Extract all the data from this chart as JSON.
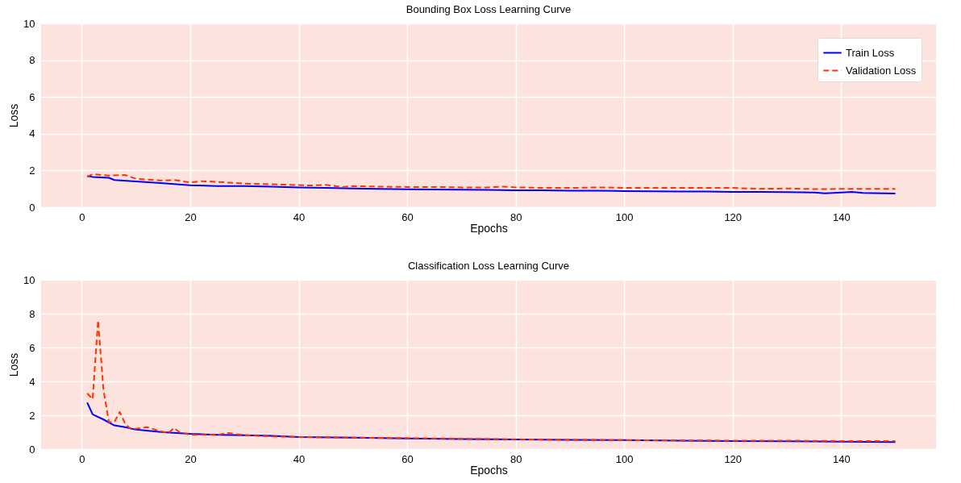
{
  "chart_data": [
    {
      "type": "line",
      "title": "Bounding Box Loss Learning Curve",
      "xlabel": "Epochs",
      "ylabel": "Loss",
      "xlim": [
        -7.5,
        157.5
      ],
      "xticks": [
        0,
        20,
        40,
        60,
        80,
        100,
        120,
        140
      ],
      "ylim": [
        0,
        10
      ],
      "yticks": [
        0,
        2,
        4,
        6,
        8,
        10
      ],
      "grid": true,
      "legend": "top right",
      "series": [
        {
          "name": "Train Loss",
          "color": "#0000ff",
          "line_style": "solid",
          "x": [
            1,
            2,
            5,
            6,
            10,
            15,
            20,
            25,
            30,
            35,
            40,
            45,
            50,
            55,
            60,
            65,
            70,
            75,
            80,
            85,
            90,
            95,
            100,
            105,
            110,
            115,
            120,
            125,
            130,
            135,
            137,
            140,
            142,
            144,
            150
          ],
          "values": [
            1.7,
            1.65,
            1.6,
            1.48,
            1.4,
            1.3,
            1.2,
            1.15,
            1.15,
            1.12,
            1.08,
            1.05,
            1.02,
            1.0,
            0.98,
            0.96,
            0.95,
            0.94,
            0.92,
            0.92,
            0.9,
            0.9,
            0.88,
            0.87,
            0.86,
            0.86,
            0.83,
            0.83,
            0.82,
            0.8,
            0.76,
            0.8,
            0.83,
            0.78,
            0.75
          ]
        },
        {
          "name": "Validation Loss",
          "color": "#ff3300",
          "line_style": "dashed",
          "x": [
            1,
            2,
            5,
            8,
            10,
            15,
            17,
            20,
            22,
            25,
            30,
            35,
            38,
            42,
            45,
            48,
            50,
            55,
            60,
            65,
            70,
            75,
            78,
            80,
            85,
            90,
            96,
            100,
            105,
            110,
            120,
            125,
            130,
            136,
            140,
            145,
            150
          ],
          "values": [
            1.65,
            1.8,
            1.72,
            1.75,
            1.55,
            1.45,
            1.48,
            1.35,
            1.42,
            1.38,
            1.28,
            1.25,
            1.22,
            1.18,
            1.22,
            1.1,
            1.15,
            1.12,
            1.1,
            1.1,
            1.08,
            1.08,
            1.12,
            1.08,
            1.05,
            1.05,
            1.08,
            1.05,
            1.05,
            1.05,
            1.05,
            1.0,
            1.02,
            0.98,
            1.0,
            1.0,
            1.0
          ]
        }
      ]
    },
    {
      "type": "line",
      "title": "Classification Loss Learning Curve",
      "xlabel": "Epochs",
      "ylabel": "Loss",
      "xlim": [
        -7.5,
        157.5
      ],
      "xticks": [
        0,
        20,
        40,
        60,
        80,
        100,
        120,
        140
      ],
      "ylim": [
        0,
        10
      ],
      "yticks": [
        0,
        2,
        4,
        6,
        8,
        10
      ],
      "grid": true,
      "legend": "top right",
      "series": [
        {
          "name": "Train Loss",
          "color": "#0000ff",
          "line_style": "solid",
          "x": [
            1,
            2,
            4,
            6,
            8,
            10,
            15,
            20,
            25,
            30,
            35,
            40,
            50,
            60,
            70,
            80,
            90,
            100,
            110,
            120,
            130,
            140,
            150
          ],
          "values": [
            2.75,
            2.05,
            1.75,
            1.4,
            1.3,
            1.15,
            1.0,
            0.9,
            0.85,
            0.82,
            0.78,
            0.72,
            0.68,
            0.63,
            0.6,
            0.57,
            0.55,
            0.53,
            0.5,
            0.48,
            0.46,
            0.44,
            0.42
          ]
        },
        {
          "name": "Validation Loss",
          "color": "#ff3300",
          "line_style": "dashed",
          "x": [
            1,
            2,
            3,
            4,
            5,
            6,
            7,
            8,
            9,
            10,
            12,
            14,
            16,
            17,
            18,
            20,
            25,
            27,
            30,
            35,
            40,
            50,
            60,
            70,
            80,
            90,
            100,
            110,
            120,
            130,
            140,
            150
          ],
          "values": [
            3.3,
            2.95,
            7.6,
            3.5,
            1.6,
            1.6,
            2.2,
            1.5,
            1.2,
            1.2,
            1.3,
            1.1,
            0.95,
            1.25,
            1.0,
            0.85,
            0.85,
            0.95,
            0.82,
            0.75,
            0.72,
            0.68,
            0.65,
            0.62,
            0.58,
            0.55,
            0.53,
            0.52,
            0.5,
            0.5,
            0.48,
            0.48
          ]
        }
      ]
    }
  ]
}
